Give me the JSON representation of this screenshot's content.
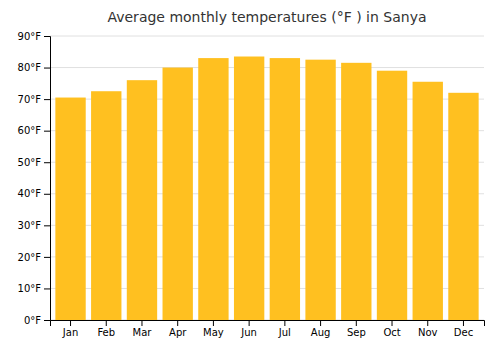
{
  "chart_data": {
    "type": "bar",
    "title": "Average monthly temperatures (°F ) in Sanya",
    "categories": [
      "Jan",
      "Feb",
      "Mar",
      "Apr",
      "May",
      "Jun",
      "Jul",
      "Aug",
      "Sep",
      "Oct",
      "Nov",
      "Dec"
    ],
    "values": [
      70.5,
      72.5,
      76.0,
      80.0,
      83.0,
      83.5,
      83.0,
      82.5,
      81.5,
      79.0,
      75.5,
      72.0
    ],
    "color": "#FFC020",
    "ylim": [
      0,
      90
    ],
    "yticks": [
      {
        "value": 0,
        "label": "0°F"
      },
      {
        "value": 10,
        "label": "10°F"
      },
      {
        "value": 20,
        "label": "20°F"
      },
      {
        "value": 30,
        "label": "30°F"
      },
      {
        "value": 40,
        "label": "40°F"
      },
      {
        "value": 50,
        "label": "50°F"
      },
      {
        "value": 60,
        "label": "60°F"
      },
      {
        "value": 70,
        "label": "70°F"
      },
      {
        "value": 80,
        "label": "80°F"
      },
      {
        "value": 90,
        "label": "90°F"
      }
    ],
    "grid": true
  }
}
